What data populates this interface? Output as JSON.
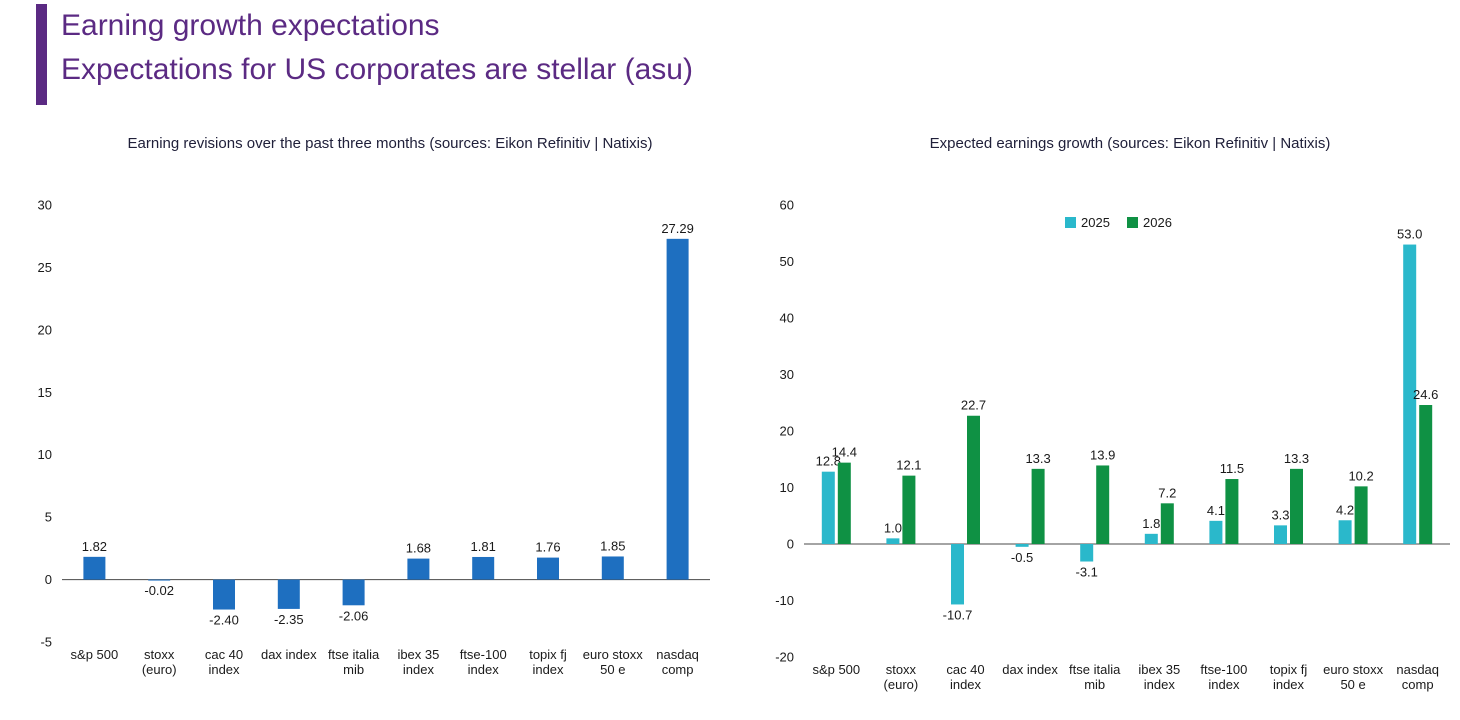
{
  "header": {
    "title_line1": "Earning growth expectations",
    "title_line2": "Expectations for US corporates are stellar (asu)"
  },
  "colors": {
    "accent_purple": "#5b2a83",
    "left_bar_blue": "#1e6fc0",
    "series_2025_cyan": "#2ab8cb",
    "series_2026_green": "#0f9144",
    "axis_line": "#4a4a4a",
    "label_text": "#1a1a1a"
  },
  "chart_data": [
    {
      "type": "bar",
      "title": "Earning revisions over the past three months (sources: Eikon Refinitiv | Natixis)",
      "categories": [
        "s&p 500",
        "stoxx\n(euro)",
        "cac 40\nindex",
        "dax index",
        "ftse italia\nmib",
        "ibex 35\nindex",
        "ftse-100\nindex",
        "topix fj\nindex",
        "euro stoxx\n50 e",
        "nasdaq\ncomp"
      ],
      "values": [
        1.82,
        -0.02,
        -2.4,
        -2.35,
        -2.06,
        1.68,
        1.81,
        1.76,
        1.85,
        27.29
      ],
      "labels": [
        "1.82",
        "-0.02",
        "-2.40",
        "-2.35",
        "-2.06",
        "1.68",
        "1.81",
        "1.76",
        "1.85",
        "27.29"
      ],
      "bar_color": "#1e6fc0",
      "ylim": [
        -5,
        30
      ],
      "ystep": 5,
      "grid": false,
      "legend": false
    },
    {
      "type": "bar",
      "title": "Expected earnings growth (sources: Eikon Refinitiv | Natixis)",
      "categories": [
        "s&p 500",
        "stoxx\n(euro)",
        "cac 40\nindex",
        "dax index",
        "ftse italia\nmib",
        "ibex 35\nindex",
        "ftse-100\nindex",
        "topix fj\nindex",
        "euro stoxx\n50 e",
        "nasdaq\ncomp"
      ],
      "series": [
        {
          "name": "2025",
          "color": "#2ab8cb",
          "values": [
            12.8,
            1.0,
            -10.7,
            -0.5,
            -3.1,
            1.8,
            4.1,
            3.3,
            4.2,
            53.0
          ],
          "labels": [
            "12.8",
            "1.0",
            "-10.7",
            "-0.5",
            "-3.1",
            "1.8",
            "4.1",
            "3.3",
            "4.2",
            "53.0"
          ]
        },
        {
          "name": "2026",
          "color": "#0f9144",
          "values": [
            14.4,
            12.1,
            22.7,
            13.3,
            13.9,
            7.2,
            11.5,
            13.3,
            10.2,
            24.6
          ],
          "labels": [
            "14.4",
            "12.1",
            "22.7",
            "13.3",
            "13.9",
            "7.2",
            "11.5",
            "13.3",
            "10.2",
            "24.6"
          ]
        }
      ],
      "ylim": [
        -20,
        60
      ],
      "ystep": 10,
      "grid": false,
      "legend": true,
      "legend_position": "top"
    }
  ]
}
